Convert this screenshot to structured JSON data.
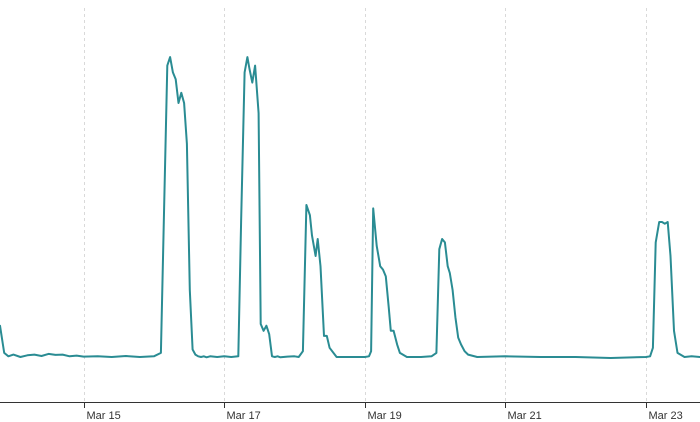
{
  "chart_data": {
    "type": "line",
    "title": "",
    "xlabel": "",
    "ylabel": "",
    "grid": "vertical-dashed",
    "series_color": "#2a8c93",
    "x_tick_labels": [
      "Mar 15",
      "Mar 17",
      "Mar 19",
      "Mar 21",
      "Mar 23"
    ],
    "x_ticks": [
      15,
      17,
      19,
      21,
      23
    ],
    "xlim": [
      13.81,
      23.77
    ],
    "ylim": [
      0,
      100
    ],
    "series": [
      {
        "x": [
          13.81,
          13.87,
          13.93,
          14.0,
          14.1,
          14.2,
          14.3,
          14.4,
          14.5,
          14.6,
          14.7,
          14.8,
          14.9,
          15.0,
          15.2,
          15.4,
          15.6,
          15.8,
          16.0,
          16.1,
          16.14,
          16.19,
          16.23,
          16.27,
          16.31,
          16.35,
          16.39,
          16.43,
          16.47,
          16.51,
          16.55,
          16.59,
          16.63,
          16.67,
          16.71,
          16.75,
          16.8,
          16.9,
          17.0,
          17.1,
          17.2,
          17.24,
          17.29,
          17.33,
          17.36,
          17.4,
          17.44,
          17.49,
          17.52,
          17.56,
          17.6,
          17.64,
          17.68,
          17.72,
          17.76,
          17.8,
          17.9,
          18.0,
          18.06,
          18.12,
          18.17,
          18.22,
          18.25,
          18.3,
          18.33,
          18.37,
          18.42,
          18.46,
          18.5,
          18.6,
          18.8,
          19.0,
          19.06,
          19.09,
          19.12,
          19.17,
          19.22,
          19.26,
          19.3,
          19.34,
          19.37,
          19.41,
          19.46,
          19.5,
          19.6,
          19.8,
          19.95,
          20.02,
          20.06,
          20.1,
          20.14,
          20.18,
          20.21,
          20.25,
          20.29,
          20.33,
          20.37,
          20.42,
          20.47,
          20.6,
          21.0,
          21.5,
          22.0,
          22.5,
          23.0,
          23.06,
          23.1,
          23.14,
          23.19,
          23.23,
          23.27,
          23.31,
          23.35,
          23.4,
          23.45,
          23.55,
          23.65,
          23.77
        ],
        "y": [
          9.5,
          1.5,
          0.5,
          1.0,
          0.3,
          0.8,
          1.0,
          0.6,
          1.2,
          0.9,
          1.0,
          0.5,
          0.7,
          0.4,
          0.5,
          0.3,
          0.6,
          0.3,
          0.5,
          1.5,
          40.0,
          86.0,
          88.5,
          84.0,
          82.0,
          75.0,
          78.0,
          75.0,
          63.0,
          20.0,
          2.5,
          1.0,
          0.5,
          0.3,
          0.5,
          0.2,
          0.5,
          0.3,
          0.5,
          0.3,
          0.5,
          40.0,
          84.0,
          88.5,
          85.0,
          81.0,
          86.0,
          72.0,
          10.0,
          8.0,
          9.5,
          7.0,
          0.5,
          0.3,
          0.5,
          0.2,
          0.4,
          0.5,
          0.3,
          2.0,
          45.0,
          42.0,
          36.0,
          30.0,
          35.0,
          27.0,
          6.5,
          6.5,
          3.0,
          0.3,
          0.3,
          0.3,
          0.5,
          2.0,
          44.0,
          33.0,
          27.0,
          26.0,
          24.0,
          15.0,
          8.0,
          8.0,
          4.0,
          1.5,
          0.3,
          0.3,
          0.5,
          1.5,
          32.0,
          35.0,
          34.0,
          27.0,
          25.0,
          20.0,
          12.0,
          6.0,
          4.0,
          2.0,
          1.0,
          0.3,
          0.5,
          0.3,
          0.3,
          0.0,
          0.3,
          0.5,
          3.0,
          34.0,
          40.0,
          40.0,
          39.5,
          40.0,
          30.0,
          8.0,
          1.5,
          0.3,
          0.5,
          0.3
        ]
      }
    ]
  }
}
